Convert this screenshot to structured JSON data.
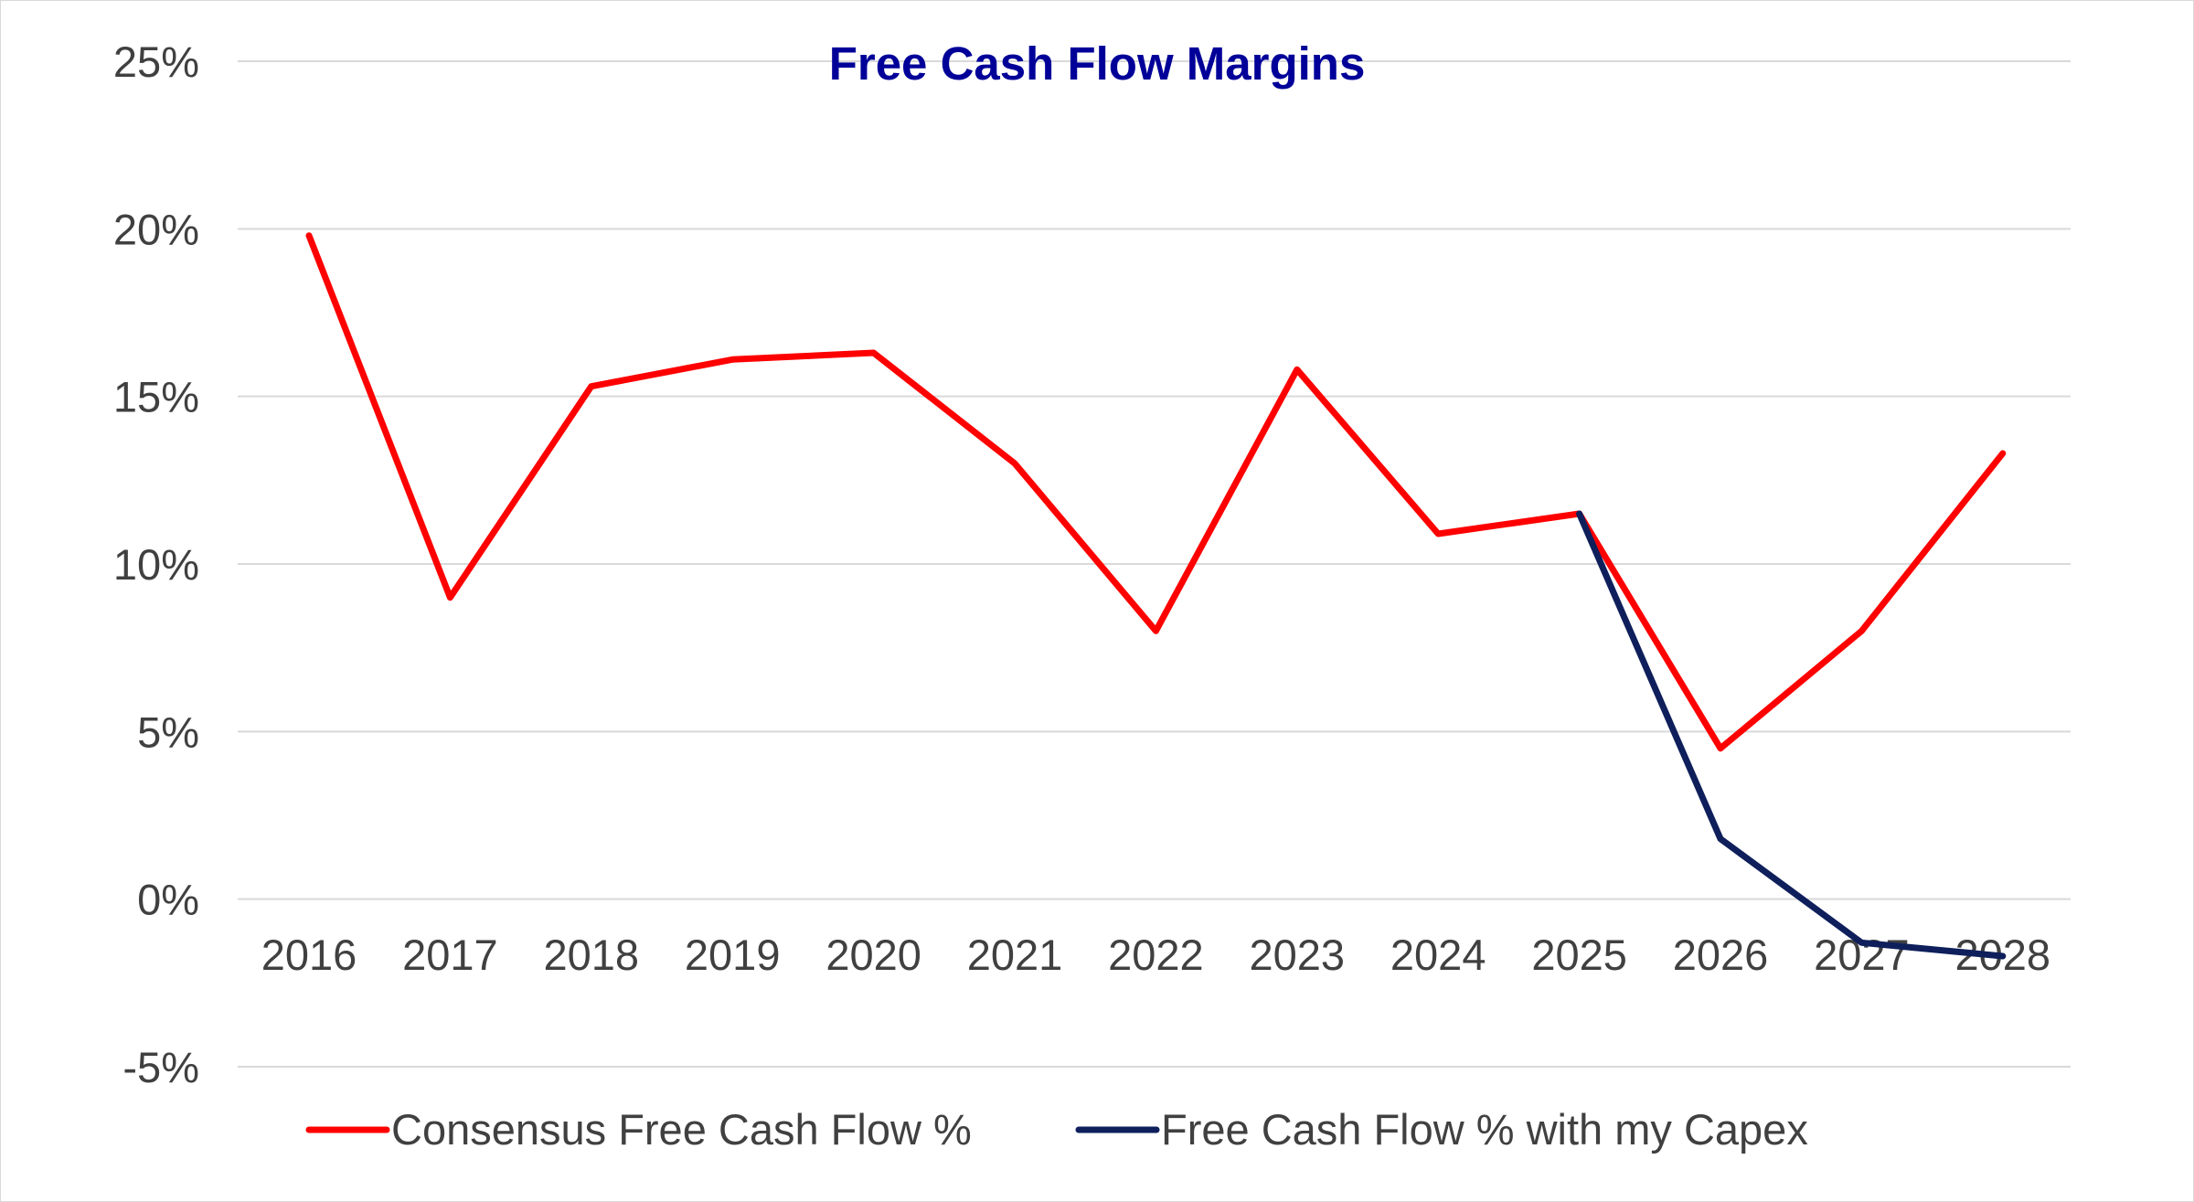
{
  "chart_data": {
    "type": "line",
    "title": "Free Cash Flow Margins",
    "xlabel": "",
    "ylabel": "",
    "categories": [
      "2016",
      "2017",
      "2018",
      "2019",
      "2020",
      "2021",
      "2022",
      "2023",
      "2024",
      "2025",
      "2026",
      "2027",
      "2028"
    ],
    "y_ticks": [
      -5,
      0,
      5,
      10,
      15,
      20,
      25
    ],
    "y_tick_labels": [
      "-5%",
      "0%",
      "5%",
      "10%",
      "15%",
      "20%",
      "25%"
    ],
    "ylim": [
      -5,
      25
    ],
    "grid": true,
    "legend_position": "bottom",
    "series": [
      {
        "name": "Consensus Free Cash Flow %",
        "color": "#ff0000",
        "values": [
          19.8,
          9.0,
          15.3,
          16.1,
          16.3,
          13.0,
          8.0,
          15.8,
          10.9,
          11.5,
          4.5,
          8.0,
          13.3
        ]
      },
      {
        "name": "Free Cash Flow % with my Capex",
        "color": "#0e1f5b",
        "values": [
          null,
          null,
          null,
          null,
          null,
          null,
          null,
          null,
          null,
          11.5,
          1.8,
          -1.3,
          -1.7
        ]
      }
    ],
    "title_color": "#000099",
    "gridline_color": "#d9d9d9"
  }
}
